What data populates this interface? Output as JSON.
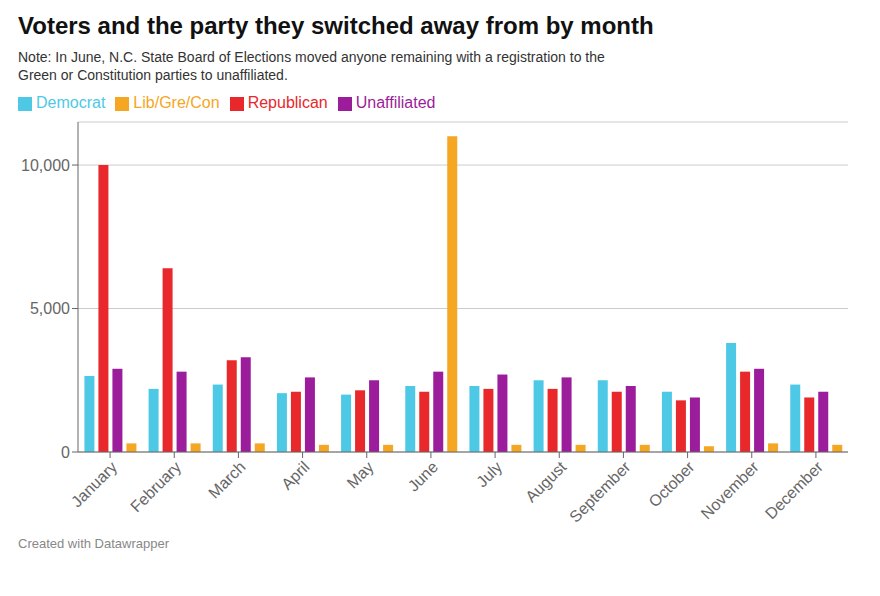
{
  "chart_data": {
    "type": "bar",
    "title": "Voters and the party they switched away from by month",
    "subtitle": [
      "Note: In June, N.C. State Board of Elections moved anyone remaining with a registration to the",
      "Green or Constitution parties to unaffiliated."
    ],
    "annotations": [
      "Created with Datawrapper"
    ],
    "categories": [
      "January",
      "February",
      "March",
      "April",
      "May",
      "June",
      "July",
      "August",
      "September",
      "October",
      "November",
      "December"
    ],
    "series": [
      {
        "name": "Democrat",
        "color": "#4dc9e6",
        "values": [
          2650,
          2200,
          2350,
          2050,
          2000,
          2300,
          2300,
          2500,
          2500,
          2100,
          3800,
          2350
        ]
      },
      {
        "name": "Republican",
        "color": "#e8282a",
        "values": [
          10000,
          6400,
          3200,
          2100,
          2150,
          2100,
          2200,
          2200,
          2100,
          1800,
          2800,
          1900
        ]
      },
      {
        "name": "Unaffiliated",
        "color": "#9b1d9b",
        "values": [
          2900,
          2800,
          3300,
          2600,
          2500,
          2800,
          2700,
          2600,
          2300,
          1900,
          2900,
          2100
        ]
      },
      {
        "name": "Lib/Gre/Con",
        "color": "#f5a623",
        "values": [
          300,
          300,
          300,
          250,
          250,
          11000,
          250,
          250,
          250,
          200,
          300,
          250
        ]
      }
    ],
    "ylim": [
      0,
      11500
    ],
    "yticks": [
      0,
      {
        "value": 5000,
        "label": "5,000"
      },
      {
        "value": 10000,
        "label": "10,000"
      }
    ],
    "grid": true,
    "legend": "top"
  }
}
